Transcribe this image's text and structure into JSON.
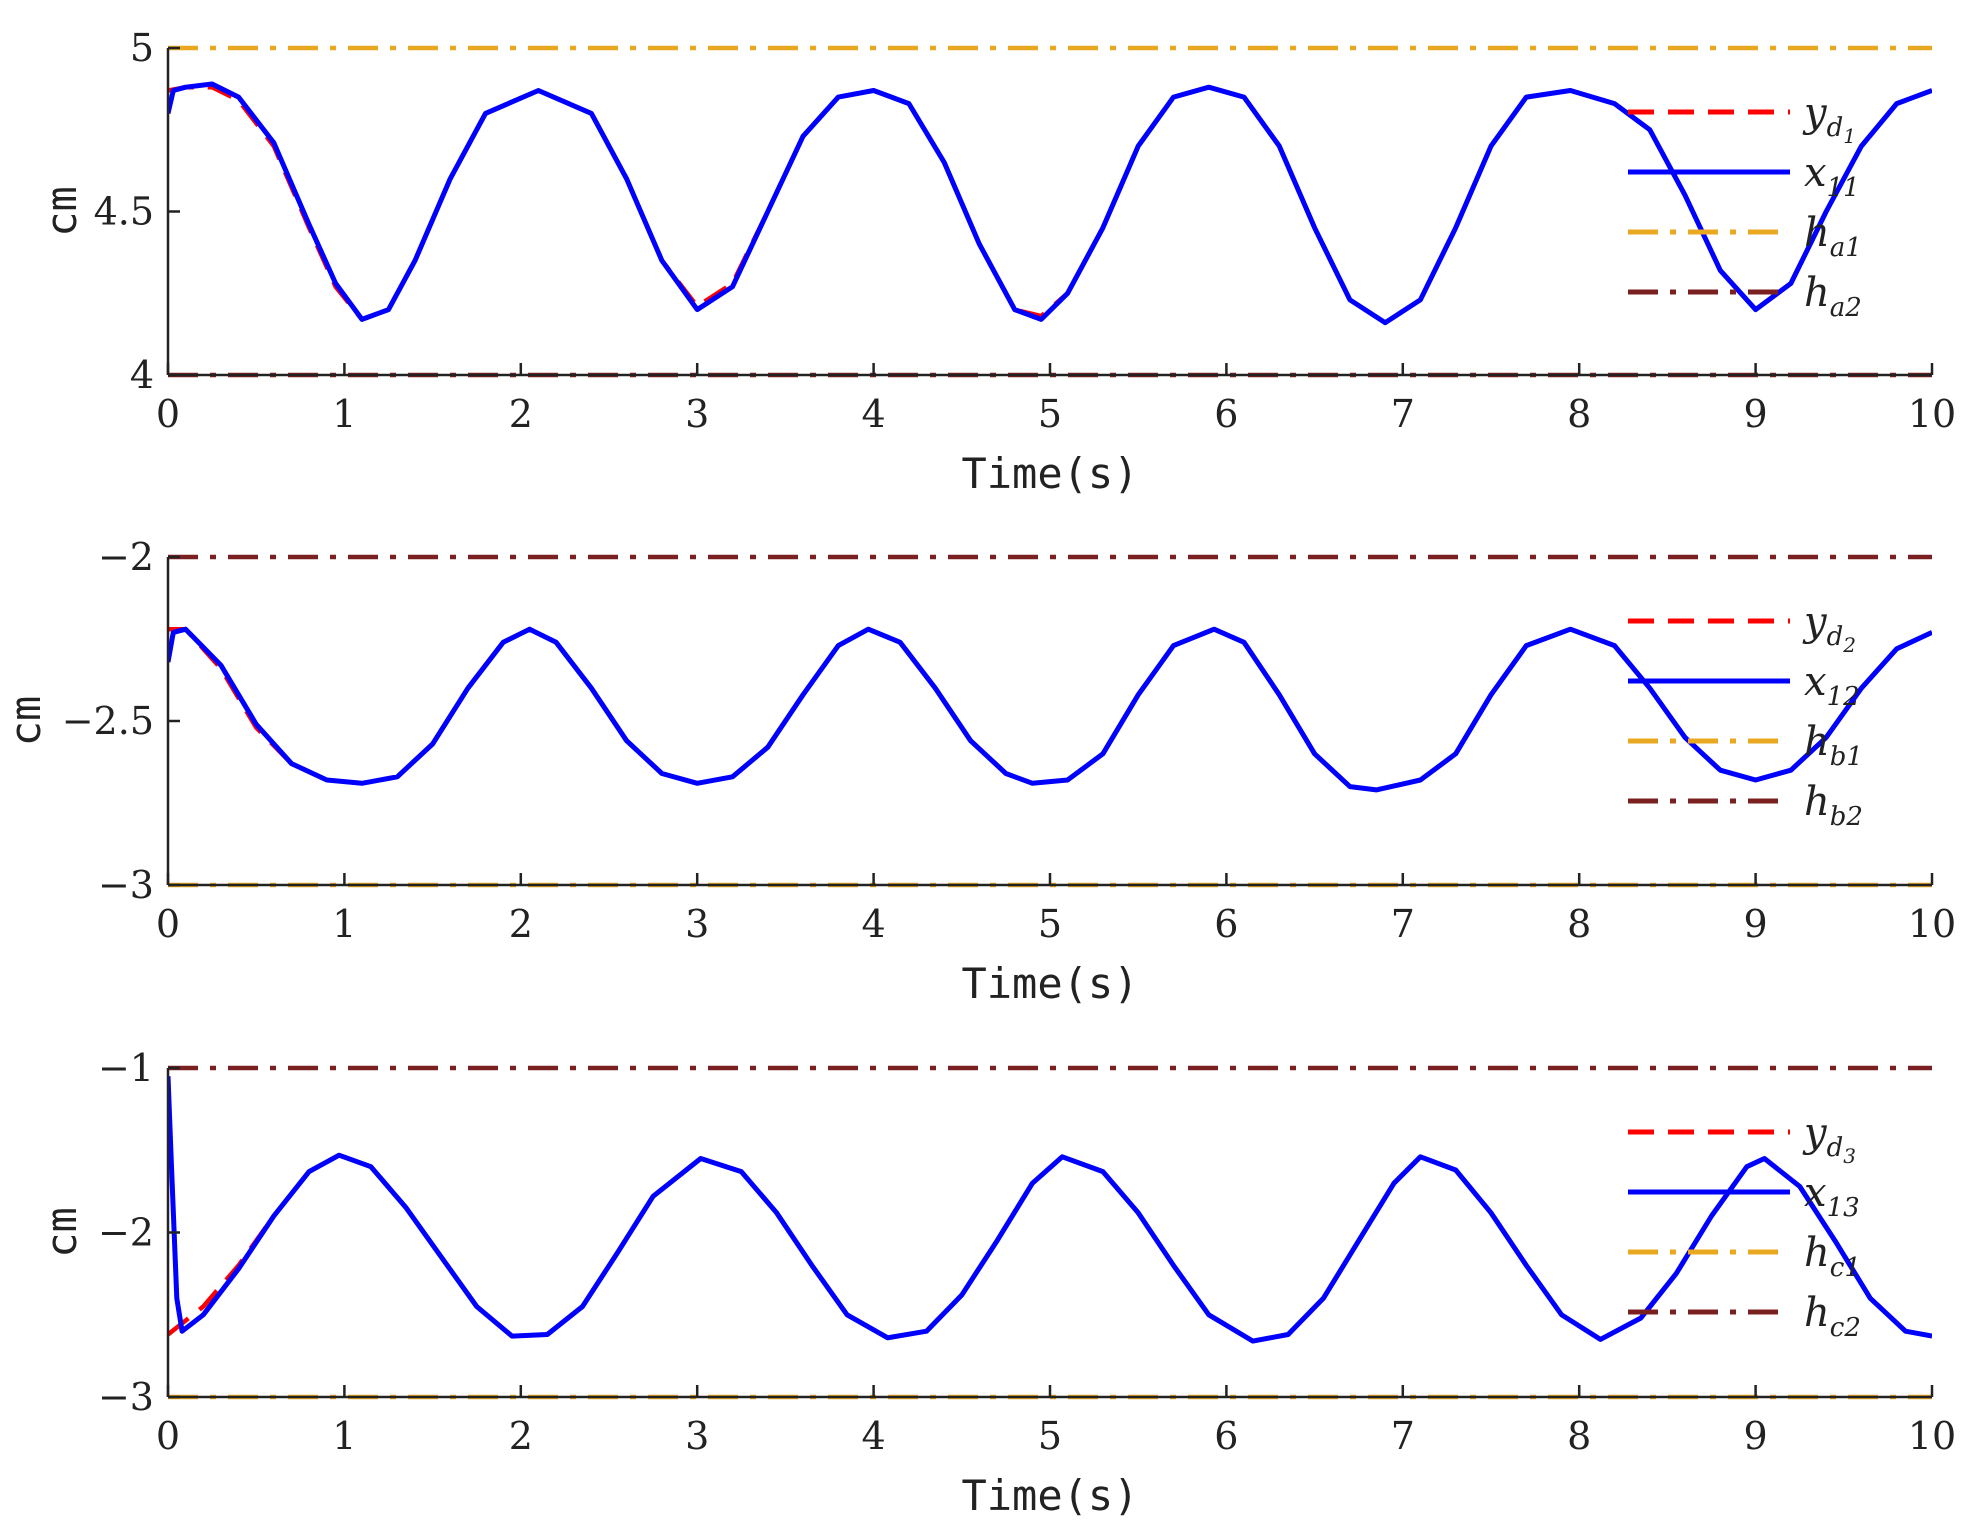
{
  "chart_data": [
    {
      "type": "line",
      "xlabel": "Time(s)",
      "ylabel": "cm",
      "xlim": [
        0,
        10
      ],
      "ylim": [
        4,
        5
      ],
      "x_ticks": [
        "0",
        "1",
        "2",
        "3",
        "4",
        "5",
        "6",
        "7",
        "8",
        "9",
        "10"
      ],
      "y_ticks": [
        {
          "value": 4,
          "label": "4"
        },
        {
          "value": 4.5,
          "label": "4.5"
        },
        {
          "value": 5,
          "label": "5"
        }
      ],
      "legend_position": "right",
      "legend": [
        {
          "base": "y",
          "sub": "d",
          "subsub": "1"
        },
        {
          "base": "x",
          "sub": "11",
          "subsub": ""
        },
        {
          "base": "h",
          "sub": "a1",
          "subsub": ""
        },
        {
          "base": "h",
          "sub": "a2",
          "subsub": ""
        }
      ],
      "series": [
        {
          "key": "yd",
          "color": "#ff0000",
          "style": "dashed",
          "x": [
            0,
            0.1,
            0.25,
            0.4,
            0.6,
            0.8,
            0.95,
            1.1,
            1.25,
            1.4,
            1.6,
            1.8,
            2.1,
            2.4,
            2.6,
            2.8,
            3.0,
            3.2,
            3.4,
            3.6,
            3.8,
            4.0,
            4.2,
            4.4,
            4.6,
            4.8,
            4.95,
            5.1,
            5.3,
            5.5,
            5.7,
            5.9,
            6.1,
            6.3,
            6.5,
            6.7,
            6.9,
            7.1,
            7.3,
            7.5,
            7.7,
            7.95,
            8.2,
            8.4,
            8.6,
            8.8,
            9.0,
            9.2,
            9.4,
            9.6,
            9.8,
            10.0
          ],
          "y": [
            4.87,
            4.88,
            4.88,
            4.84,
            4.7,
            4.45,
            4.27,
            4.17,
            4.2,
            4.35,
            4.6,
            4.8,
            4.87,
            4.8,
            4.6,
            4.35,
            4.21,
            4.28,
            4.5,
            4.73,
            4.85,
            4.87,
            4.83,
            4.65,
            4.4,
            4.2,
            4.18,
            4.25,
            4.45,
            4.7,
            4.85,
            4.88,
            4.85,
            4.7,
            4.45,
            4.23,
            4.16,
            4.23,
            4.45,
            4.7,
            4.85,
            4.87,
            4.83,
            4.75,
            4.55,
            4.32,
            4.2,
            4.28,
            4.5,
            4.7,
            4.83,
            4.87
          ]
        },
        {
          "key": "x1",
          "color": "#0000ff",
          "style": "solid",
          "x": [
            0,
            0.03,
            0.1,
            0.25,
            0.4,
            0.6,
            0.8,
            0.95,
            1.1,
            1.25,
            1.4,
            1.6,
            1.8,
            2.1,
            2.4,
            2.6,
            2.8,
            3.0,
            3.2,
            3.4,
            3.6,
            3.8,
            4.0,
            4.2,
            4.4,
            4.6,
            4.8,
            4.95,
            5.1,
            5.3,
            5.5,
            5.7,
            5.9,
            6.1,
            6.3,
            6.5,
            6.7,
            6.9,
            7.1,
            7.3,
            7.5,
            7.7,
            7.95,
            8.2,
            8.4,
            8.6,
            8.8,
            9.0,
            9.2,
            9.4,
            9.6,
            9.8,
            10.0
          ],
          "y": [
            4.8,
            4.87,
            4.88,
            4.89,
            4.85,
            4.71,
            4.46,
            4.28,
            4.17,
            4.2,
            4.35,
            4.6,
            4.8,
            4.87,
            4.8,
            4.6,
            4.35,
            4.2,
            4.27,
            4.5,
            4.73,
            4.85,
            4.87,
            4.83,
            4.65,
            4.4,
            4.2,
            4.17,
            4.25,
            4.45,
            4.7,
            4.85,
            4.88,
            4.85,
            4.7,
            4.45,
            4.23,
            4.16,
            4.23,
            4.45,
            4.7,
            4.85,
            4.87,
            4.83,
            4.75,
            4.55,
            4.32,
            4.2,
            4.28,
            4.5,
            4.7,
            4.83,
            4.87
          ]
        },
        {
          "key": "h1",
          "color": "#e8a820",
          "style": "dashdot",
          "x": [
            0,
            10
          ],
          "y": [
            5,
            5
          ]
        },
        {
          "key": "h2",
          "color": "#7b2020",
          "style": "dashdot",
          "x": [
            0,
            10
          ],
          "y": [
            4,
            4
          ]
        }
      ]
    },
    {
      "type": "line",
      "xlabel": "Time(s)",
      "ylabel": "cm",
      "xlim": [
        0,
        10
      ],
      "ylim": [
        -3,
        -2
      ],
      "x_ticks": [
        "0",
        "1",
        "2",
        "3",
        "4",
        "5",
        "6",
        "7",
        "8",
        "9",
        "10"
      ],
      "y_ticks": [
        {
          "value": -3,
          "label": "−3"
        },
        {
          "value": -2.5,
          "label": "−2.5"
        },
        {
          "value": -2,
          "label": "−2"
        }
      ],
      "legend_position": "right",
      "legend": [
        {
          "base": "y",
          "sub": "d",
          "subsub": "2"
        },
        {
          "base": "x",
          "sub": "12",
          "subsub": ""
        },
        {
          "base": "h",
          "sub": "b1",
          "subsub": ""
        },
        {
          "base": "h",
          "sub": "b2",
          "subsub": ""
        }
      ],
      "series": [
        {
          "key": "yd",
          "color": "#ff0000",
          "style": "dashed",
          "x": [
            0,
            0.1,
            0.3,
            0.5,
            0.7,
            0.9,
            1.1,
            1.3,
            1.5,
            1.7,
            1.9,
            2.05,
            2.2,
            2.4,
            2.6,
            2.8,
            3.0,
            3.2,
            3.4,
            3.6,
            3.8,
            3.97,
            4.15,
            4.35,
            4.55,
            4.75,
            4.9,
            5.1,
            5.3,
            5.5,
            5.7,
            5.93,
            6.1,
            6.3,
            6.5,
            6.7,
            6.85,
            7.1,
            7.3,
            7.5,
            7.7,
            7.95,
            8.2,
            8.4,
            8.6,
            8.8,
            9.0,
            9.2,
            9.4,
            9.6,
            9.8,
            10.0
          ],
          "y": [
            -2.22,
            -2.22,
            -2.34,
            -2.52,
            -2.63,
            -2.68,
            -2.69,
            -2.67,
            -2.57,
            -2.4,
            -2.26,
            -2.22,
            -2.26,
            -2.4,
            -2.56,
            -2.66,
            -2.69,
            -2.67,
            -2.58,
            -2.42,
            -2.27,
            -2.22,
            -2.26,
            -2.4,
            -2.56,
            -2.66,
            -2.69,
            -2.68,
            -2.6,
            -2.42,
            -2.27,
            -2.22,
            -2.26,
            -2.42,
            -2.6,
            -2.7,
            -2.71,
            -2.68,
            -2.6,
            -2.42,
            -2.27,
            -2.22,
            -2.27,
            -2.4,
            -2.55,
            -2.65,
            -2.68,
            -2.65,
            -2.55,
            -2.4,
            -2.28,
            -2.23
          ]
        },
        {
          "key": "x1",
          "color": "#0000ff",
          "style": "solid",
          "x": [
            0,
            0.03,
            0.1,
            0.3,
            0.5,
            0.7,
            0.9,
            1.1,
            1.3,
            1.5,
            1.7,
            1.9,
            2.05,
            2.2,
            2.4,
            2.6,
            2.8,
            3.0,
            3.2,
            3.4,
            3.6,
            3.8,
            3.97,
            4.15,
            4.35,
            4.55,
            4.75,
            4.9,
            5.1,
            5.3,
            5.5,
            5.7,
            5.93,
            6.1,
            6.3,
            6.5,
            6.7,
            6.85,
            7.1,
            7.3,
            7.5,
            7.7,
            7.95,
            8.2,
            8.4,
            8.6,
            8.8,
            9.0,
            9.2,
            9.4,
            9.6,
            9.8,
            10.0
          ],
          "y": [
            -2.32,
            -2.23,
            -2.22,
            -2.33,
            -2.51,
            -2.63,
            -2.68,
            -2.69,
            -2.67,
            -2.57,
            -2.4,
            -2.26,
            -2.22,
            -2.26,
            -2.4,
            -2.56,
            -2.66,
            -2.69,
            -2.67,
            -2.58,
            -2.42,
            -2.27,
            -2.22,
            -2.26,
            -2.4,
            -2.56,
            -2.66,
            -2.69,
            -2.68,
            -2.6,
            -2.42,
            -2.27,
            -2.22,
            -2.26,
            -2.42,
            -2.6,
            -2.7,
            -2.71,
            -2.68,
            -2.6,
            -2.42,
            -2.27,
            -2.22,
            -2.27,
            -2.4,
            -2.55,
            -2.65,
            -2.68,
            -2.65,
            -2.55,
            -2.4,
            -2.28,
            -2.23
          ]
        },
        {
          "key": "h1",
          "color": "#e8a820",
          "style": "dashdot",
          "x": [
            0,
            10
          ],
          "y": [
            -3,
            -3
          ]
        },
        {
          "key": "h2",
          "color": "#7b2020",
          "style": "dashdot",
          "x": [
            0,
            10
          ],
          "y": [
            -2,
            -2
          ]
        }
      ]
    },
    {
      "type": "line",
      "xlabel": "Time(s)",
      "ylabel": "cm",
      "xlim": [
        0,
        10
      ],
      "ylim": [
        -3,
        -1
      ],
      "x_ticks": [
        "0",
        "1",
        "2",
        "3",
        "4",
        "5",
        "6",
        "7",
        "8",
        "9",
        "10"
      ],
      "y_ticks": [
        {
          "value": -3,
          "label": "−3"
        },
        {
          "value": -2,
          "label": "−2"
        },
        {
          "value": -1,
          "label": "−1"
        }
      ],
      "legend_position": "right",
      "legend": [
        {
          "base": "y",
          "sub": "d",
          "subsub": "3"
        },
        {
          "base": "x",
          "sub": "13",
          "subsub": ""
        },
        {
          "base": "h",
          "sub": "c1",
          "subsub": ""
        },
        {
          "base": "h",
          "sub": "c2",
          "subsub": ""
        }
      ],
      "series": [
        {
          "key": "yd",
          "color": "#ff0000",
          "style": "dashed",
          "x": [
            0,
            0.2,
            0.4,
            0.6,
            0.8,
            0.97,
            1.15,
            1.35,
            1.55,
            1.75,
            1.95,
            2.15,
            2.35,
            2.55,
            2.75,
            3.02,
            3.25,
            3.45,
            3.65,
            3.85,
            4.08,
            4.3,
            4.5,
            4.7,
            4.9,
            5.07,
            5.3,
            5.5,
            5.7,
            5.9,
            6.15,
            6.35,
            6.55,
            6.75,
            6.95,
            7.1,
            7.3,
            7.5,
            7.7,
            7.9,
            8.12,
            8.35,
            8.55,
            8.75,
            8.95,
            9.05,
            9.25,
            9.45,
            9.65,
            9.85,
            10.0
          ],
          "y": [
            -2.62,
            -2.45,
            -2.2,
            -1.9,
            -1.63,
            -1.53,
            -1.6,
            -1.85,
            -2.15,
            -2.45,
            -2.63,
            -2.62,
            -2.45,
            -2.12,
            -1.78,
            -1.55,
            -1.63,
            -1.88,
            -2.2,
            -2.5,
            -2.64,
            -2.6,
            -2.38,
            -2.05,
            -1.7,
            -1.54,
            -1.63,
            -1.88,
            -2.2,
            -2.5,
            -2.66,
            -2.62,
            -2.4,
            -2.05,
            -1.7,
            -1.54,
            -1.62,
            -1.88,
            -2.2,
            -2.5,
            -2.65,
            -2.52,
            -2.25,
            -1.9,
            -1.6,
            -1.55,
            -1.72,
            -2.05,
            -2.4,
            -2.6,
            -2.63
          ]
        },
        {
          "key": "x1",
          "color": "#0000ff",
          "style": "solid",
          "x": [
            0,
            0.02,
            0.05,
            0.08,
            0.2,
            0.4,
            0.6,
            0.8,
            0.97,
            1.15,
            1.35,
            1.55,
            1.75,
            1.95,
            2.15,
            2.35,
            2.55,
            2.75,
            3.02,
            3.25,
            3.45,
            3.65,
            3.85,
            4.08,
            4.3,
            4.5,
            4.7,
            4.9,
            5.07,
            5.3,
            5.5,
            5.7,
            5.9,
            6.15,
            6.35,
            6.55,
            6.75,
            6.95,
            7.1,
            7.3,
            7.5,
            7.7,
            7.9,
            8.12,
            8.35,
            8.55,
            8.75,
            8.95,
            9.05,
            9.25,
            9.45,
            9.65,
            9.85,
            10.0
          ],
          "y": [
            -1.05,
            -1.6,
            -2.4,
            -2.6,
            -2.5,
            -2.22,
            -1.9,
            -1.63,
            -1.53,
            -1.6,
            -1.85,
            -2.15,
            -2.45,
            -2.63,
            -2.62,
            -2.45,
            -2.12,
            -1.78,
            -1.55,
            -1.63,
            -1.88,
            -2.2,
            -2.5,
            -2.64,
            -2.6,
            -2.38,
            -2.05,
            -1.7,
            -1.54,
            -1.63,
            -1.88,
            -2.2,
            -2.5,
            -2.66,
            -2.62,
            -2.4,
            -2.05,
            -1.7,
            -1.54,
            -1.62,
            -1.88,
            -2.2,
            -2.5,
            -2.65,
            -2.52,
            -2.25,
            -1.9,
            -1.6,
            -1.55,
            -1.72,
            -2.05,
            -2.4,
            -2.6,
            -2.63
          ]
        },
        {
          "key": "h1",
          "color": "#e8a820",
          "style": "dashdot",
          "x": [
            0,
            10
          ],
          "y": [
            -3,
            -3
          ]
        },
        {
          "key": "h2",
          "color": "#7b2020",
          "style": "dashdot",
          "x": [
            0,
            10
          ],
          "y": [
            -1,
            -1
          ]
        }
      ]
    }
  ]
}
